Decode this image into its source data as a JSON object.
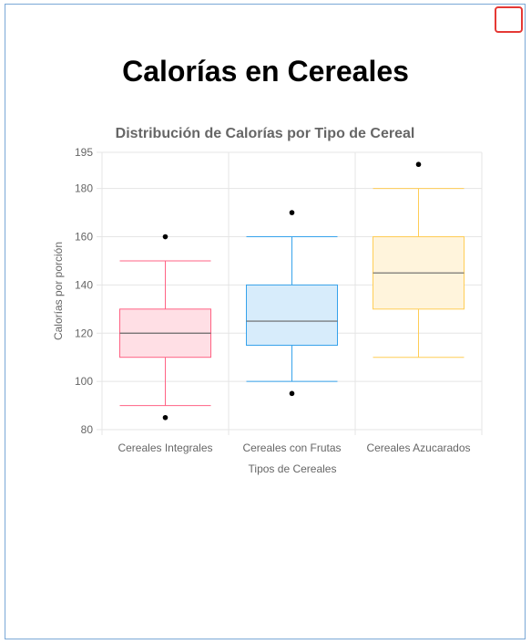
{
  "page": {
    "title": "Calorías en Cereales"
  },
  "close_button": {
    "icon": "close-icon"
  },
  "chart_data": {
    "type": "boxplot",
    "title": "Distribución de Calorías por Tipo de Cereal",
    "xlabel": "Tipos de Cereales",
    "ylabel": "Calorías por porción",
    "ylim": [
      80,
      195
    ],
    "yticks": [
      80,
      100,
      120,
      140,
      160,
      180,
      195
    ],
    "grid": true,
    "legend": "none",
    "categories": [
      "Cereales Integrales",
      "Cereales con Frutas",
      "Cereales Azucarados"
    ],
    "series": [
      {
        "category": "Cereales Integrales",
        "min": 90,
        "q1": 110,
        "median": 120,
        "q3": 130,
        "max": 150,
        "outliers": [
          85,
          160
        ],
        "color": "#ff6384",
        "fill": "#ffdfe5"
      },
      {
        "category": "Cereales con Frutas",
        "min": 100,
        "q1": 115,
        "median": 125,
        "q3": 140,
        "max": 160,
        "outliers": [
          95,
          170
        ],
        "color": "#36a2eb",
        "fill": "#d7ecfb"
      },
      {
        "category": "Cereales Azucarados",
        "min": 110,
        "q1": 130,
        "median": 145,
        "q3": 160,
        "max": 180,
        "outliers": [
          190
        ],
        "color": "#ffcd56",
        "fill": "#fff4dc"
      }
    ],
    "colors": {
      "grid": "#e5e5e5",
      "median": "#666666",
      "outlier": "#000000",
      "text": "#666666"
    }
  }
}
